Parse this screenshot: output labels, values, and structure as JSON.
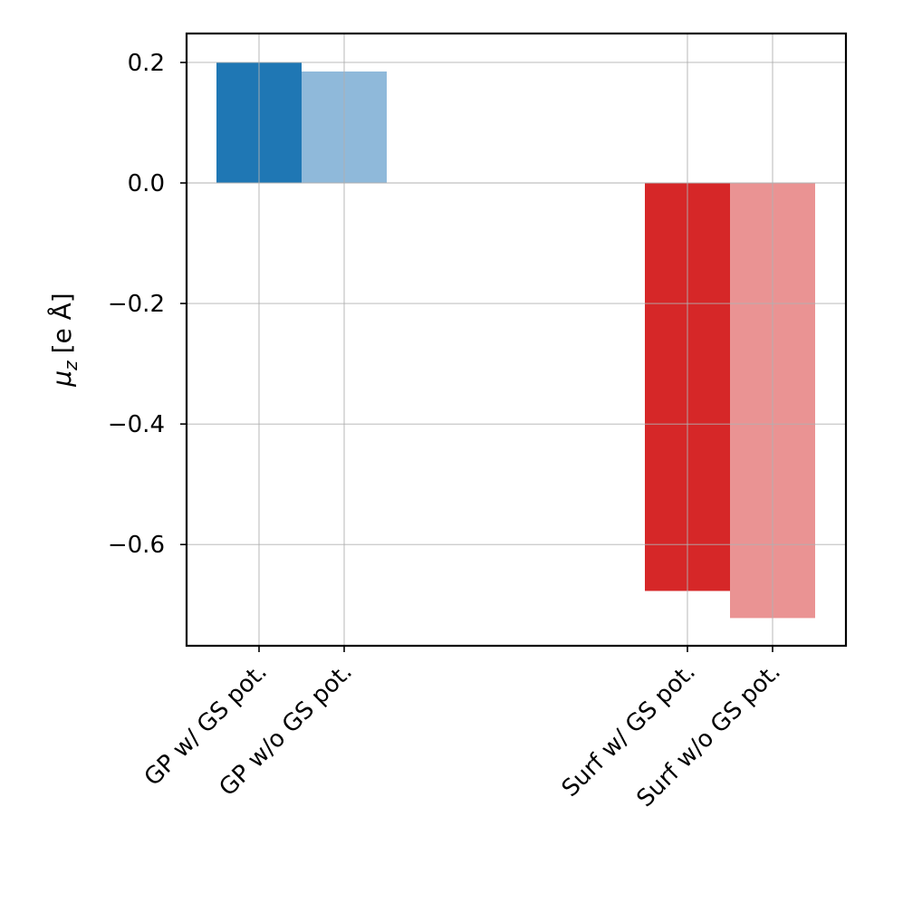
{
  "chart_data": {
    "type": "bar",
    "categories": [
      "GP w/ GS pot.",
      "GP w/o GS pot.",
      "Surf w/ GS pot.",
      "Surf w/o GS pot."
    ],
    "values": [
      0.2,
      0.185,
      -0.677,
      -0.722
    ],
    "colors": [
      "#1f77b4",
      "#8fb9da",
      "#d62728",
      "#ea9393"
    ],
    "title": "",
    "xlabel": "",
    "ylabel_symbol": "μ",
    "ylabel_subscript": "z",
    "ylabel_unit": "[e Å]",
    "ylim": [
      -0.768,
      0.248
    ],
    "yticks": [
      0.2,
      0.0,
      -0.2,
      -0.4,
      -0.6
    ],
    "ytick_labels": [
      "0.2",
      "0.0",
      "−0.2",
      "−0.4",
      "−0.6"
    ],
    "grid": true,
    "grid_color": "#b0b0b0",
    "xtick_rotation": -45
  }
}
